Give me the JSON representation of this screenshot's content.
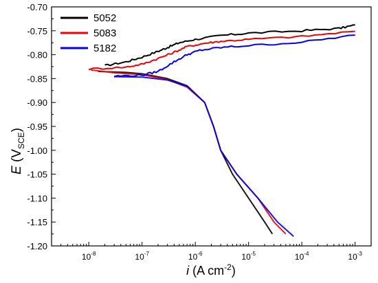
{
  "chart_data": {
    "type": "line",
    "xscale": "log",
    "xlim": [
      2e-09,
      0.002
    ],
    "ylim": [
      -1.2,
      -0.7
    ],
    "yticks": [
      -0.7,
      -0.75,
      -0.8,
      -0.85,
      -0.9,
      -0.95,
      -1.0,
      -1.05,
      -1.1,
      -1.15,
      -1.2
    ],
    "ytick_labels": [
      "-0.70",
      "-0.75",
      "-0.80",
      "-0.85",
      "-0.90",
      "-0.95",
      "-1.00",
      "-1.05",
      "-1.10",
      "-1.15",
      "-1.20"
    ],
    "xticks": [
      1e-08,
      1e-07,
      1e-06,
      1e-05,
      0.0001,
      0.001
    ],
    "xtick_labels": [
      {
        "base": "10",
        "exp": "-8"
      },
      {
        "base": "10",
        "exp": "-7"
      },
      {
        "base": "10",
        "exp": "-6"
      },
      {
        "base": "10",
        "exp": "-5"
      },
      {
        "base": "10",
        "exp": "-4"
      },
      {
        "base": "10",
        "exp": "-3"
      }
    ],
    "ylabel": {
      "italic": "E",
      "text": " (V",
      "sub": "SCE",
      "end": ")"
    },
    "xlabel": {
      "italic": "i",
      "text": " (A cm",
      "sup": "-2",
      "end": ")"
    },
    "grid": false,
    "legend": "top-left",
    "series": [
      {
        "name": "5052",
        "color": "#000000",
        "anodic": [
          [
            2e-08,
            -0.823
          ],
          [
            5e-08,
            -0.815
          ],
          [
            1e-07,
            -0.805
          ],
          [
            2e-07,
            -0.793
          ],
          [
            3e-07,
            -0.785
          ],
          [
            5e-07,
            -0.775
          ],
          [
            1e-06,
            -0.768
          ],
          [
            3e-06,
            -0.76
          ],
          [
            1e-05,
            -0.755
          ],
          [
            0.0001,
            -0.75
          ],
          [
            0.0005,
            -0.745
          ],
          [
            0.001,
            -0.738
          ]
        ],
        "cathodic": [
          [
            1.5e-08,
            -0.835
          ],
          [
            5e-08,
            -0.837
          ],
          [
            1e-07,
            -0.84
          ],
          [
            3e-07,
            -0.85
          ],
          [
            7e-07,
            -0.865
          ],
          [
            1.5e-06,
            -0.9
          ],
          [
            2.2e-06,
            -0.95
          ],
          [
            3e-06,
            -1.0
          ],
          [
            5e-06,
            -1.05
          ],
          [
            1e-05,
            -1.1
          ],
          [
            2e-05,
            -1.15
          ],
          [
            2.8e-05,
            -1.175
          ]
        ]
      },
      {
        "name": "5083",
        "color": "#ee0000",
        "anodic": [
          [
            1e-08,
            -0.83
          ],
          [
            5e-08,
            -0.826
          ],
          [
            1e-07,
            -0.82
          ],
          [
            2e-07,
            -0.808
          ],
          [
            4e-07,
            -0.795
          ],
          [
            7e-07,
            -0.783
          ],
          [
            1.5e-06,
            -0.776
          ],
          [
            3e-06,
            -0.772
          ],
          [
            1e-05,
            -0.768
          ],
          [
            0.0001,
            -0.762
          ],
          [
            0.001,
            -0.751
          ]
        ],
        "cathodic": [
          [
            1.1e-08,
            -0.832
          ],
          [
            3e-08,
            -0.838
          ],
          [
            1e-07,
            -0.842
          ],
          [
            3e-07,
            -0.852
          ],
          [
            7e-07,
            -0.868
          ],
          [
            1.5e-06,
            -0.9
          ],
          [
            2.2e-06,
            -0.95
          ],
          [
            3e-06,
            -1.0
          ],
          [
            6e-06,
            -1.05
          ],
          [
            1.5e-05,
            -1.1
          ],
          [
            3e-05,
            -1.15
          ],
          [
            5e-05,
            -1.175
          ]
        ]
      },
      {
        "name": "5182",
        "color": "#0000ee",
        "anodic": [
          [
            3e-08,
            -0.845
          ],
          [
            1e-07,
            -0.843
          ],
          [
            2e-07,
            -0.835
          ],
          [
            4e-07,
            -0.815
          ],
          [
            7e-07,
            -0.8
          ],
          [
            1.2e-06,
            -0.791
          ],
          [
            3e-06,
            -0.785
          ],
          [
            1e-05,
            -0.781
          ],
          [
            0.0001,
            -0.774
          ],
          [
            0.001,
            -0.759
          ]
        ],
        "cathodic": [
          [
            3e-08,
            -0.846
          ],
          [
            1e-07,
            -0.847
          ],
          [
            3e-07,
            -0.853
          ],
          [
            7e-07,
            -0.866
          ],
          [
            1.5e-06,
            -0.9
          ],
          [
            2.2e-06,
            -0.95
          ],
          [
            3e-06,
            -1.0
          ],
          [
            6e-06,
            -1.05
          ],
          [
            1.5e-05,
            -1.1
          ],
          [
            3.5e-05,
            -1.15
          ],
          [
            7e-05,
            -1.18
          ]
        ]
      }
    ]
  }
}
